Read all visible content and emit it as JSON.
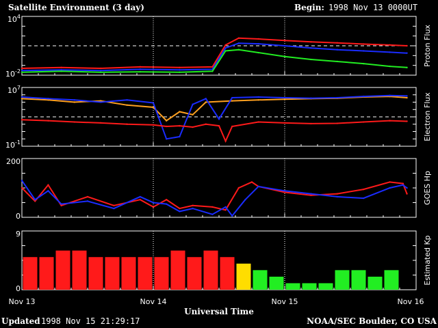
{
  "header": {
    "title": "Satellite Environment (3 day)",
    "begin_label": "Begin:",
    "begin_value": "1998 Nov 13 0000UT"
  },
  "footer": {
    "updated_label": "Updated",
    "updated_value": "1998 Nov 15 21:29:17",
    "credit": "NOAA/SEC Boulder, CO USA"
  },
  "x_axis": {
    "label": "Universal Time",
    "ticks": [
      "Nov 13",
      "Nov 14",
      "Nov 15",
      "Nov 16"
    ],
    "range_days": [
      0,
      3
    ]
  },
  "colors": {
    "red": "#ff1a1a",
    "blue": "#1a2cff",
    "green": "#22ee22",
    "orange": "#ffa020",
    "yellow": "#ffdd00",
    "kp_green": "#22ee22",
    "white": "#ffffff"
  },
  "chart_data": [
    {
      "type": "line",
      "ylabel": "Proton Flux",
      "scale": "log",
      "ylim": [
        0.01,
        10000
      ],
      "tick_labels": [
        "10^4",
        "10^-2"
      ],
      "dashed_threshold": 10,
      "series": [
        {
          "color": "red",
          "x": [
            0,
            0.3,
            0.6,
            0.9,
            1.2,
            1.45,
            1.55,
            1.65,
            1.8,
            2.0,
            2.2,
            2.4,
            2.6,
            2.8,
            2.93
          ],
          "y": [
            0.05,
            0.06,
            0.05,
            0.07,
            0.06,
            0.07,
            12,
            60,
            50,
            35,
            25,
            20,
            15,
            12,
            10
          ]
        },
        {
          "color": "blue",
          "x": [
            0,
            0.3,
            0.6,
            0.9,
            1.2,
            1.45,
            1.55,
            1.65,
            1.8,
            2.0,
            2.2,
            2.4,
            2.6,
            2.8,
            2.93
          ],
          "y": [
            0.03,
            0.035,
            0.03,
            0.04,
            0.035,
            0.04,
            6,
            18,
            16,
            10,
            6,
            4,
            3,
            2.2,
            1.8
          ]
        },
        {
          "color": "green",
          "x": [
            0,
            0.3,
            0.6,
            0.9,
            1.2,
            1.45,
            1.55,
            1.65,
            1.8,
            2.0,
            2.2,
            2.4,
            2.6,
            2.8,
            2.93
          ],
          "y": [
            0.02,
            0.025,
            0.02,
            0.022,
            0.02,
            0.025,
            3,
            4,
            2,
            0.8,
            0.4,
            0.25,
            0.15,
            0.08,
            0.06
          ]
        }
      ]
    },
    {
      "type": "line",
      "ylabel": "Electron Flux",
      "scale": "log",
      "ylim": [
        0.1,
        10000000
      ],
      "tick_labels": [
        "10^7",
        "10^-1"
      ],
      "dashed_threshold": 1000,
      "series": [
        {
          "color": "orange",
          "x": [
            0,
            0.2,
            0.4,
            0.6,
            0.8,
            1.0,
            1.1,
            1.2,
            1.3,
            1.4,
            1.6,
            1.8,
            2.0,
            2.2,
            2.4,
            2.6,
            2.8,
            2.93
          ],
          "y": [
            300000,
            200000,
            100000,
            150000,
            40000,
            20000,
            300,
            5000,
            2000,
            100000,
            150000,
            200000,
            250000,
            300000,
            350000,
            500000,
            600000,
            400000
          ]
        },
        {
          "color": "blue",
          "x": [
            0,
            0.2,
            0.4,
            0.6,
            0.8,
            1.0,
            1.1,
            1.2,
            1.3,
            1.4,
            1.5,
            1.6,
            1.8,
            2.0,
            2.2,
            2.4,
            2.6,
            2.8,
            2.93
          ],
          "y": [
            500000,
            300000,
            200000,
            100000,
            200000,
            80000,
            1,
            2,
            50000,
            300000,
            500,
            400000,
            500000,
            400000,
            350000,
            400000,
            600000,
            800000,
            700000
          ]
        },
        {
          "color": "red",
          "x": [
            0,
            0.2,
            0.4,
            0.6,
            0.8,
            1.0,
            1.1,
            1.2,
            1.3,
            1.4,
            1.5,
            1.55,
            1.6,
            1.8,
            2.0,
            2.2,
            2.4,
            2.6,
            2.8,
            2.93
          ],
          "y": [
            400,
            300,
            200,
            150,
            100,
            80,
            50,
            60,
            40,
            100,
            60,
            0.5,
            50,
            200,
            150,
            120,
            130,
            200,
            300,
            250
          ]
        }
      ]
    },
    {
      "type": "line",
      "ylabel": "GOES Hp",
      "scale": "linear",
      "ylim": [
        0,
        200
      ],
      "tick_labels": [
        "200",
        "0"
      ],
      "series": [
        {
          "color": "red",
          "x": [
            0,
            0.1,
            0.2,
            0.3,
            0.5,
            0.7,
            0.9,
            1.0,
            1.1,
            1.2,
            1.3,
            1.45,
            1.55,
            1.65,
            1.75,
            1.8,
            2.0,
            2.2,
            2.4,
            2.6,
            2.8,
            2.9,
            2.93
          ],
          "y": [
            100,
            55,
            110,
            40,
            70,
            40,
            60,
            35,
            60,
            30,
            40,
            35,
            25,
            100,
            120,
            105,
            85,
            75,
            80,
            95,
            120,
            115,
            80
          ]
        },
        {
          "color": "blue",
          "x": [
            0,
            0.1,
            0.2,
            0.3,
            0.5,
            0.7,
            0.9,
            1.0,
            1.1,
            1.2,
            1.3,
            1.45,
            1.55,
            1.6,
            1.7,
            1.8,
            2.0,
            2.2,
            2.4,
            2.6,
            2.8,
            2.9,
            2.93
          ],
          "y": [
            125,
            60,
            90,
            45,
            55,
            30,
            70,
            50,
            45,
            20,
            30,
            10,
            35,
            5,
            60,
            105,
            90,
            80,
            70,
            65,
            100,
            110,
            100
          ]
        }
      ]
    },
    {
      "type": "bar",
      "ylabel": "Estimated Kp",
      "ylim": [
        0,
        9
      ],
      "tick_labels": [
        "9",
        "0"
      ],
      "interval_hours": 3,
      "values": [
        5,
        5,
        6,
        6,
        5,
        5,
        5,
        5,
        5,
        6,
        5,
        6,
        5,
        4,
        3,
        2,
        1,
        1,
        1,
        3,
        3,
        2,
        3
      ],
      "bar_colors": [
        "red",
        "red",
        "red",
        "red",
        "red",
        "red",
        "red",
        "red",
        "red",
        "red",
        "red",
        "red",
        "red",
        "yellow",
        "kp_green",
        "kp_green",
        "kp_green",
        "kp_green",
        "kp_green",
        "kp_green",
        "kp_green",
        "kp_green",
        "kp_green"
      ]
    }
  ]
}
